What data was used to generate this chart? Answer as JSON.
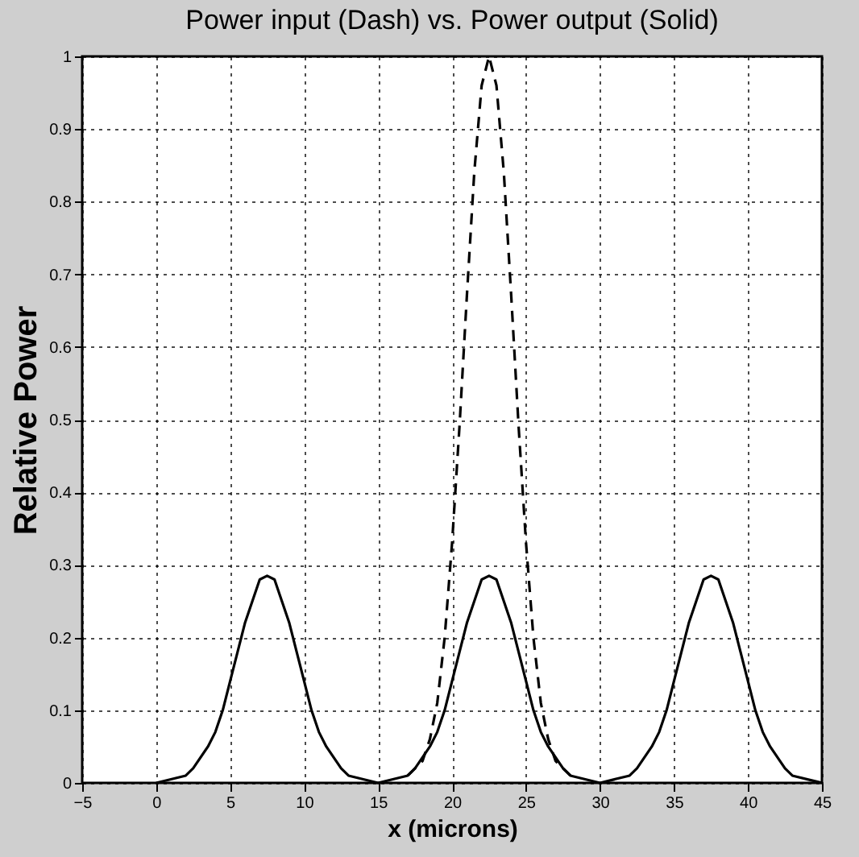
{
  "chart_data": {
    "type": "line",
    "title": "Power input (Dash) vs. Power output (Solid)",
    "xlabel": "x (microns)",
    "ylabel": "Relative Power",
    "xlim": [
      -5,
      45
    ],
    "xticks": [
      -5,
      0,
      5,
      10,
      15,
      20,
      25,
      30,
      35,
      40,
      45
    ],
    "ylim": [
      0,
      1
    ],
    "yticks": [
      0,
      0.1,
      0.2,
      0.3,
      0.4,
      0.5,
      0.6,
      0.7,
      0.8,
      0.9,
      1
    ],
    "grid": true,
    "marker": "none",
    "series": [
      {
        "color": "#000000",
        "line_style": "solid",
        "x": [
          0,
          2,
          2.5,
          3.5,
          4,
          4.5,
          5,
          5.5,
          6,
          6.5,
          7,
          7.5,
          8,
          8.5,
          9,
          9.5,
          10,
          10.5,
          11,
          11.5,
          12.5,
          13,
          15,
          17,
          17.5,
          18.5,
          19,
          19.5,
          20,
          20.5,
          21,
          21.5,
          22,
          22.5,
          23,
          23.5,
          24,
          24.5,
          25,
          25.5,
          26,
          26.5,
          27.5,
          28,
          30,
          32,
          32.5,
          33.5,
          34,
          34.5,
          35,
          35.5,
          36,
          36.5,
          37,
          37.5,
          38,
          38.5,
          39,
          39.5,
          40,
          40.5,
          41,
          41.5,
          42.5,
          43,
          45
        ],
        "values": [
          0,
          0.01,
          0.02,
          0.05,
          0.07,
          0.1,
          0.14,
          0.18,
          0.22,
          0.25,
          0.28,
          0.285,
          0.28,
          0.25,
          0.22,
          0.18,
          0.14,
          0.1,
          0.07,
          0.05,
          0.02,
          0.01,
          0,
          0.01,
          0.02,
          0.05,
          0.07,
          0.1,
          0.14,
          0.18,
          0.22,
          0.25,
          0.28,
          0.285,
          0.28,
          0.25,
          0.22,
          0.18,
          0.14,
          0.1,
          0.07,
          0.05,
          0.02,
          0.01,
          0,
          0.01,
          0.02,
          0.05,
          0.07,
          0.1,
          0.14,
          0.18,
          0.22,
          0.25,
          0.28,
          0.285,
          0.28,
          0.25,
          0.22,
          0.18,
          0.14,
          0.1,
          0.07,
          0.05,
          0.02,
          0.01,
          0
        ]
      },
      {
        "color": "#000000",
        "line_style": "dashed",
        "x": [
          17,
          18,
          18.5,
          19,
          19.5,
          20,
          20.5,
          21,
          21.5,
          22,
          22.5,
          23,
          23.5,
          24,
          24.5,
          25,
          25.5,
          26,
          26.5,
          27,
          28
        ],
        "values": [
          0.01,
          0.03,
          0.06,
          0.11,
          0.2,
          0.33,
          0.49,
          0.67,
          0.84,
          0.96,
          1.0,
          0.96,
          0.84,
          0.67,
          0.49,
          0.33,
          0.2,
          0.11,
          0.06,
          0.03,
          0.01
        ]
      }
    ]
  }
}
